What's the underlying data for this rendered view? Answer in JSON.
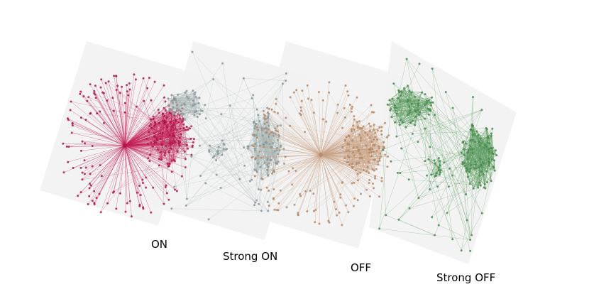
{
  "figure": {
    "panels": [
      {
        "id": "on",
        "label": "ON",
        "edge_color": "#c21e56",
        "node_color": "#b0134a",
        "structure": "hub with dense cluster"
      },
      {
        "id": "strong-on",
        "label": "Strong ON",
        "edge_color": "#a9b5b5",
        "node_color": "#8a9898",
        "structure": "sparse with clusters"
      },
      {
        "id": "off",
        "label": "OFF",
        "edge_color": "#c9a183",
        "node_color": "#b48a68",
        "structure": "hub with dense cluster"
      },
      {
        "id": "strong-off",
        "label": "Strong OFF",
        "edge_color": "#5f9f63",
        "node_color": "#4a8a4f",
        "structure": "sparse with dense cluster"
      }
    ]
  }
}
